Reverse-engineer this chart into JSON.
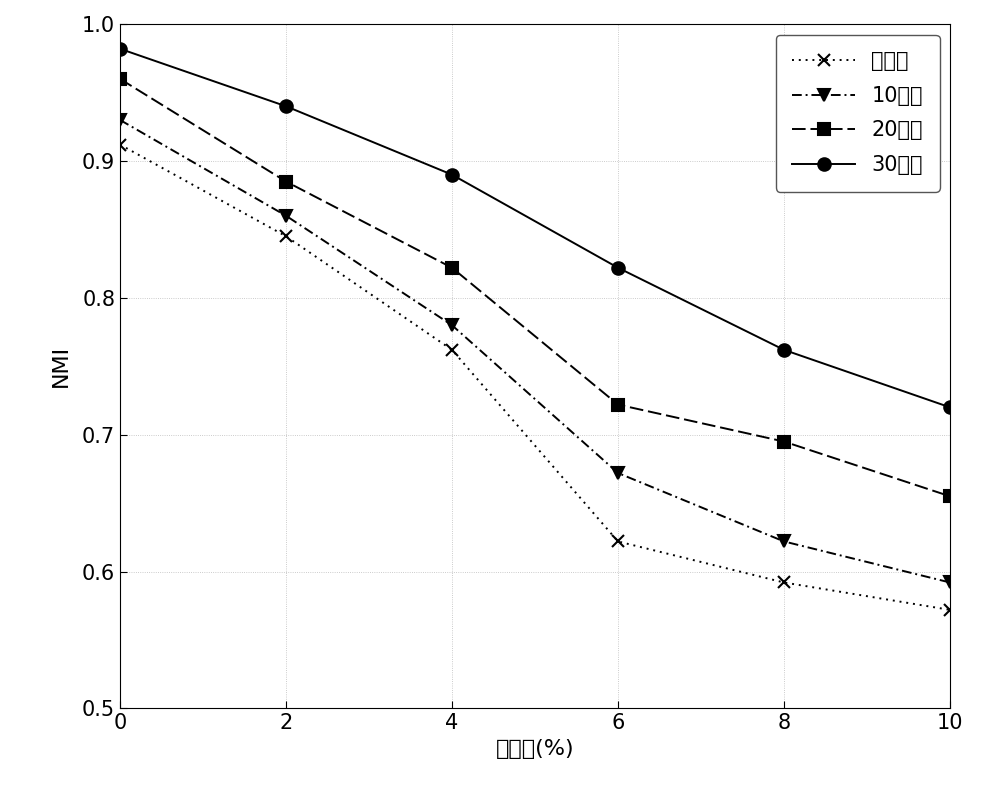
{
  "x": [
    0,
    2,
    4,
    6,
    8,
    10
  ],
  "series": [
    {
      "label": "无约束",
      "y": [
        0.912,
        0.845,
        0.762,
        0.622,
        0.592,
        0.572
      ],
      "linestyle": "dotted",
      "marker": "x",
      "linewidth": 1.4,
      "markersize": 9
    },
    {
      "label": "10约束",
      "y": [
        0.93,
        0.86,
        0.78,
        0.672,
        0.622,
        0.592
      ],
      "linestyle": "dashdot",
      "marker": "v",
      "linewidth": 1.4,
      "markersize": 9
    },
    {
      "label": "20约束",
      "y": [
        0.96,
        0.885,
        0.822,
        0.722,
        0.695,
        0.655
      ],
      "linestyle": "dashed",
      "marker": "s",
      "linewidth": 1.4,
      "markersize": 9
    },
    {
      "label": "30约束",
      "y": [
        0.982,
        0.94,
        0.89,
        0.822,
        0.762,
        0.72
      ],
      "linestyle": "solid",
      "marker": "o",
      "linewidth": 1.4,
      "markersize": 9
    }
  ],
  "xlabel": "噪音比(%)",
  "ylabel": "NMI",
  "xlim": [
    0,
    10
  ],
  "ylim": [
    0.5,
    1.0
  ],
  "xticks": [
    0,
    2,
    4,
    6,
    8,
    10
  ],
  "yticks": [
    0.5,
    0.6,
    0.7,
    0.8,
    0.9,
    1.0
  ],
  "background_color": "#ffffff",
  "axis_fontsize": 16,
  "tick_fontsize": 15,
  "legend_fontsize": 15
}
